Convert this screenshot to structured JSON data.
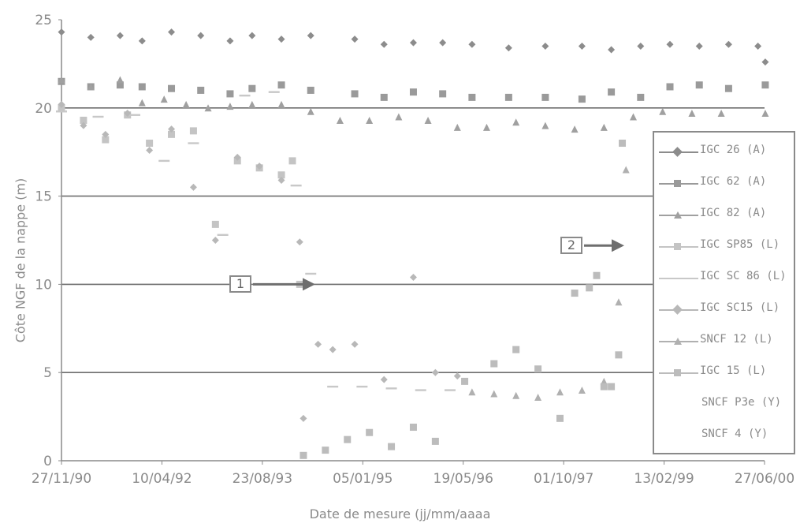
{
  "chart_data": {
    "type": "scatter",
    "title": "",
    "xlabel": "Date de mesure (jj/mm/aaaa",
    "ylabel": "Côte NGF de la nappe (m)",
    "ylim": [
      0,
      25
    ],
    "yticks": [
      "0",
      "5",
      "10",
      "15",
      "20",
      "25"
    ],
    "xticks": [
      "27/11/90",
      "10/04/92",
      "23/08/93",
      "05/01/95",
      "19/05/96",
      "01/10/97",
      "13/02/99",
      "27/06/00"
    ],
    "grid": "horizontal",
    "legend_position": "right",
    "annotations": [
      {
        "label": "1",
        "x": 1994.05,
        "y": 10.0
      },
      {
        "label": "2",
        "x": 1998.25,
        "y": 12.2
      }
    ],
    "series": [
      {
        "name": "IGC 26 (A)",
        "marker": "diamond",
        "color": "#8c8c8c",
        "x": [
          1990.9,
          1991.3,
          1991.7,
          1992.0,
          1992.4,
          1992.8,
          1993.2,
          1993.5,
          1993.9,
          1994.3,
          1994.9,
          1995.3,
          1995.7,
          1996.1,
          1996.5,
          1997.0,
          1997.5,
          1998.0,
          1998.4,
          1998.8,
          1999.2,
          1999.6,
          2000.0,
          2000.4,
          2000.5
        ],
        "y": [
          24.3,
          24.0,
          24.1,
          23.8,
          24.3,
          24.1,
          23.8,
          24.1,
          23.9,
          24.1,
          23.9,
          23.6,
          23.7,
          23.7,
          23.6,
          23.4,
          23.5,
          23.5,
          23.3,
          23.5,
          23.6,
          23.5,
          23.6,
          23.5,
          22.6
        ]
      },
      {
        "name": "IGC 62 (A)",
        "marker": "square",
        "color": "#9a9a9a",
        "x": [
          1990.9,
          1991.3,
          1991.7,
          1992.0,
          1992.4,
          1992.8,
          1993.2,
          1993.5,
          1993.9,
          1994.3,
          1994.9,
          1995.3,
          1995.7,
          1996.1,
          1996.5,
          1997.0,
          1997.5,
          1998.0,
          1998.4,
          1998.8,
          1999.2,
          1999.6,
          2000.0,
          2000.5
        ],
        "y": [
          21.5,
          21.2,
          21.3,
          21.2,
          21.1,
          21.0,
          20.8,
          21.1,
          21.3,
          21.0,
          20.8,
          20.6,
          20.9,
          20.8,
          20.6,
          20.6,
          20.6,
          20.5,
          20.9,
          20.6,
          21.2,
          21.3,
          21.1,
          21.3
        ]
      },
      {
        "name": "IGC 82 (A)",
        "marker": "triangle",
        "color": "#a0a0a0",
        "x": [
          1990.9,
          1991.3,
          1991.7,
          1992.0,
          1992.3,
          1992.6,
          1992.9,
          1993.2,
          1993.5,
          1993.9,
          1994.3,
          1994.7,
          1995.1,
          1995.5,
          1995.9,
          1996.3,
          1996.7,
          1997.1,
          1997.5,
          1997.9,
          1998.3,
          1998.7,
          1999.1,
          1999.5,
          1999.9,
          2000.5
        ],
        "y": [
          21.6,
          21.2,
          21.6,
          20.3,
          20.5,
          20.2,
          20.0,
          20.1,
          20.2,
          20.2,
          19.8,
          19.3,
          19.3,
          19.5,
          19.3,
          18.9,
          18.9,
          19.2,
          19.0,
          18.8,
          18.9,
          19.5,
          19.8,
          19.7,
          19.7,
          19.7
        ]
      },
      {
        "name": "IGC SP85 (L)",
        "marker": "square",
        "color": "#c4c4c4",
        "x": [
          1990.9,
          1991.2,
          1991.5,
          1991.8,
          1992.1,
          1992.4,
          1992.7,
          1993.0,
          1993.3,
          1993.6,
          1993.9,
          1994.05,
          1994.15
        ],
        "y": [
          20.0,
          19.3,
          18.2,
          19.6,
          18.0,
          18.5,
          18.7,
          13.4,
          17.0,
          16.6,
          16.2,
          17.0,
          10.0
        ]
      },
      {
        "name": "IGC SC 86 (L)",
        "marker": "dash",
        "color": "#c8c8c8",
        "x": [
          1990.9,
          1991.4,
          1991.9,
          1992.3,
          1992.7,
          1993.1,
          1993.4,
          1993.8,
          1994.1,
          1994.3,
          1994.6,
          1995.0,
          1995.4,
          1995.8,
          1996.2
        ],
        "y": [
          19.8,
          19.5,
          19.6,
          17.0,
          18.0,
          12.8,
          20.7,
          20.9,
          15.6,
          10.6,
          4.2,
          4.2,
          4.1,
          4.0,
          4.0
        ]
      },
      {
        "name": "IGC SC15 (L)",
        "marker": "diamond",
        "color": "#b8b8b8",
        "x": [
          1990.9,
          1991.2,
          1991.5,
          1991.8,
          1992.1,
          1992.4,
          1992.7,
          1993.0,
          1993.3,
          1993.6,
          1993.9,
          1994.15,
          1994.2,
          1994.4,
          1994.6,
          1994.9,
          1995.3,
          1995.7,
          1996.0,
          1996.3
        ],
        "y": [
          20.2,
          19.0,
          18.5,
          19.7,
          17.6,
          18.8,
          15.5,
          12.5,
          17.2,
          16.7,
          15.9,
          12.4,
          2.4,
          6.6,
          6.3,
          6.6,
          4.6,
          10.4,
          5.0,
          4.8
        ]
      },
      {
        "name": "SNCF 12 (L)",
        "marker": "triangle",
        "color": "#b0b0b0",
        "x": [
          1996.5,
          1996.8,
          1997.1,
          1997.4,
          1997.7,
          1998.0,
          1998.3,
          1998.5,
          1998.6
        ],
        "y": [
          3.9,
          3.8,
          3.7,
          3.6,
          3.9,
          4.0,
          4.5,
          9.0,
          16.5
        ]
      },
      {
        "name": "IGC 15 (L)",
        "marker": "square",
        "color": "#bcbcbc",
        "x": [
          1994.2,
          1994.5,
          1994.8,
          1995.1,
          1995.4,
          1995.7,
          1996.0,
          1996.4,
          1996.8,
          1997.1,
          1997.4,
          1997.7,
          1997.9,
          1998.1,
          1998.2,
          1998.3,
          1998.4,
          1998.5,
          1998.55
        ],
        "y": [
          0.3,
          0.6,
          1.2,
          1.6,
          0.8,
          1.9,
          1.1,
          4.5,
          5.5,
          6.3,
          5.2,
          2.4,
          9.5,
          9.8,
          10.5,
          4.2,
          4.2,
          6.0,
          18.0
        ]
      },
      {
        "name": "SNCF P3e (Y)",
        "marker": "none",
        "color": "#ffffff",
        "x": [],
        "y": []
      },
      {
        "name": "SNCF 4 (Y)",
        "marker": "none",
        "color": "#ffffff",
        "x": [],
        "y": []
      }
    ]
  }
}
